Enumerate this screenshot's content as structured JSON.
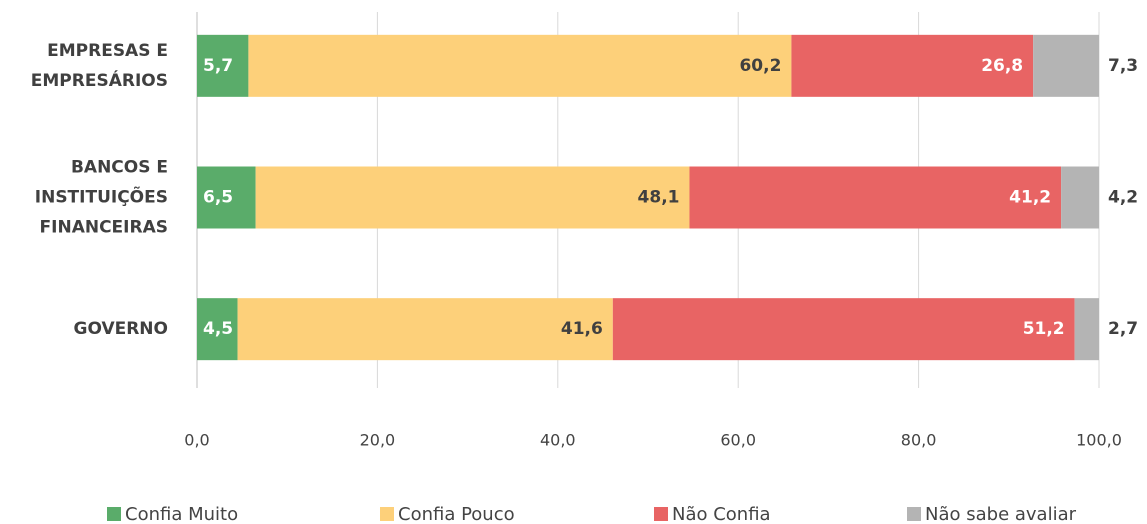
{
  "chart_data": {
    "type": "stacked_bar_horizontal",
    "categories": [
      [
        "EMPRESAS E",
        "EMPRESÁRIOS"
      ],
      [
        "BANCOS E",
        "INSTITUIÇÕES",
        "FINANCEIRAS"
      ],
      [
        "GOVERNO"
      ]
    ],
    "series": [
      {
        "name": "Confia Muito",
        "color": "#5aac6a",
        "values": [
          5.7,
          6.5,
          4.5
        ],
        "value_labels": [
          "5,7",
          "6,5",
          "4,5"
        ]
      },
      {
        "name": "Confia Pouco",
        "color": "#fdd07a",
        "values": [
          60.2,
          48.1,
          41.6
        ],
        "value_labels": [
          "60,2",
          "48,1",
          "41,6"
        ]
      },
      {
        "name": "Não Confia",
        "color": "#e86464",
        "values": [
          26.8,
          41.2,
          51.2
        ],
        "value_labels": [
          "26,8",
          "41,2",
          "51,2"
        ]
      },
      {
        "name": "Não sabe avaliar",
        "color": "#b4b4b4",
        "values": [
          7.3,
          4.2,
          2.7
        ],
        "value_labels": [
          "7,3",
          "4,2",
          "2,7"
        ]
      }
    ],
    "xlim": [
      0,
      100
    ],
    "xticks": [
      {
        "value": 0,
        "label": "0,0"
      },
      {
        "value": 20,
        "label": "20,0"
      },
      {
        "value": 40,
        "label": "40,0"
      },
      {
        "value": 60,
        "label": "60,0"
      },
      {
        "value": 80,
        "label": "80,0"
      },
      {
        "value": 100,
        "label": "100,0"
      }
    ],
    "grid": true,
    "legend": "bottom"
  }
}
